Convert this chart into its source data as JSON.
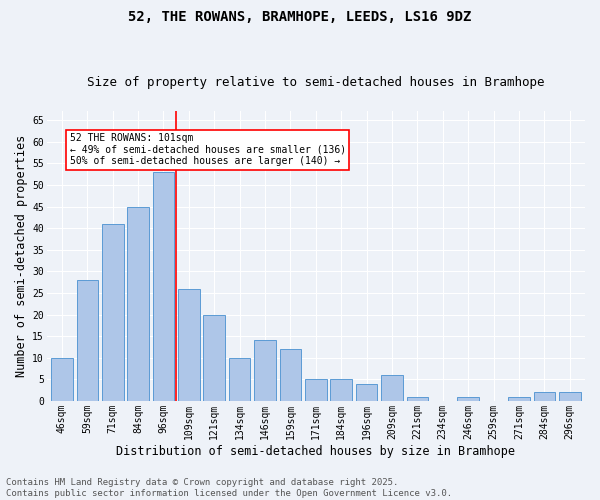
{
  "title": "52, THE ROWANS, BRAMHOPE, LEEDS, LS16 9DZ",
  "subtitle": "Size of property relative to semi-detached houses in Bramhope",
  "xlabel": "Distribution of semi-detached houses by size in Bramhope",
  "ylabel": "Number of semi-detached properties",
  "categories": [
    "46sqm",
    "59sqm",
    "71sqm",
    "84sqm",
    "96sqm",
    "109sqm",
    "121sqm",
    "134sqm",
    "146sqm",
    "159sqm",
    "171sqm",
    "184sqm",
    "196sqm",
    "209sqm",
    "221sqm",
    "234sqm",
    "246sqm",
    "259sqm",
    "271sqm",
    "284sqm",
    "296sqm"
  ],
  "values": [
    10,
    28,
    41,
    45,
    53,
    26,
    20,
    10,
    14,
    12,
    5,
    5,
    4,
    6,
    1,
    0,
    1,
    0,
    1,
    2,
    2
  ],
  "bar_color": "#aec6e8",
  "bar_edge_color": "#5b9bd5",
  "vline_x_index": 4,
  "vline_color": "red",
  "annotation_text": "52 THE ROWANS: 101sqm\n← 49% of semi-detached houses are smaller (136)\n50% of semi-detached houses are larger (140) →",
  "ylim": [
    0,
    67
  ],
  "yticks": [
    0,
    5,
    10,
    15,
    20,
    25,
    30,
    35,
    40,
    45,
    50,
    55,
    60,
    65
  ],
  "footnote": "Contains HM Land Registry data © Crown copyright and database right 2025.\nContains public sector information licensed under the Open Government Licence v3.0.",
  "bg_color": "#eef2f8",
  "title_fontsize": 10,
  "subtitle_fontsize": 9,
  "axis_label_fontsize": 8.5,
  "tick_fontsize": 7,
  "footnote_fontsize": 6.5
}
